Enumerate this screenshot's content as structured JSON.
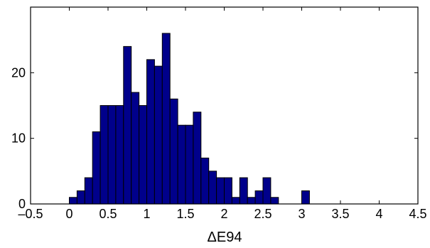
{
  "chart_data": {
    "type": "bar",
    "title": "",
    "xlabel": "ΔE94",
    "ylabel": "",
    "bar_color": "#00008b",
    "edge_color": "#000000",
    "bin_width": 0.1,
    "x": [
      0.05,
      0.15,
      0.25,
      0.35,
      0.45,
      0.55,
      0.65,
      0.75,
      0.85,
      0.95,
      1.05,
      1.15,
      1.25,
      1.35,
      1.45,
      1.55,
      1.65,
      1.75,
      1.85,
      1.95,
      2.05,
      2.15,
      2.25,
      2.35,
      2.45,
      2.55,
      2.65,
      3.05
    ],
    "values": [
      1,
      2,
      4,
      11,
      15,
      15,
      15,
      24,
      17,
      15,
      22,
      21,
      26,
      16,
      12,
      12,
      14,
      7,
      5,
      4,
      4,
      1,
      4,
      1,
      2,
      4,
      1,
      2
    ],
    "xlim": [
      -0.5,
      4.5
    ],
    "ylim": [
      0,
      30
    ],
    "xticks": [
      -0.5,
      0,
      0.5,
      1,
      1.5,
      2,
      2.5,
      3,
      3.5,
      4,
      4.5
    ],
    "xtick_labels": [
      "–0.5",
      "0",
      "0.5",
      "1",
      "1.5",
      "2",
      "2.5",
      "3",
      "3.5",
      "4",
      "4.5"
    ],
    "yticks": [
      0,
      10,
      20
    ],
    "ytick_labels": [
      "0",
      "10",
      "20"
    ],
    "grid": false
  }
}
